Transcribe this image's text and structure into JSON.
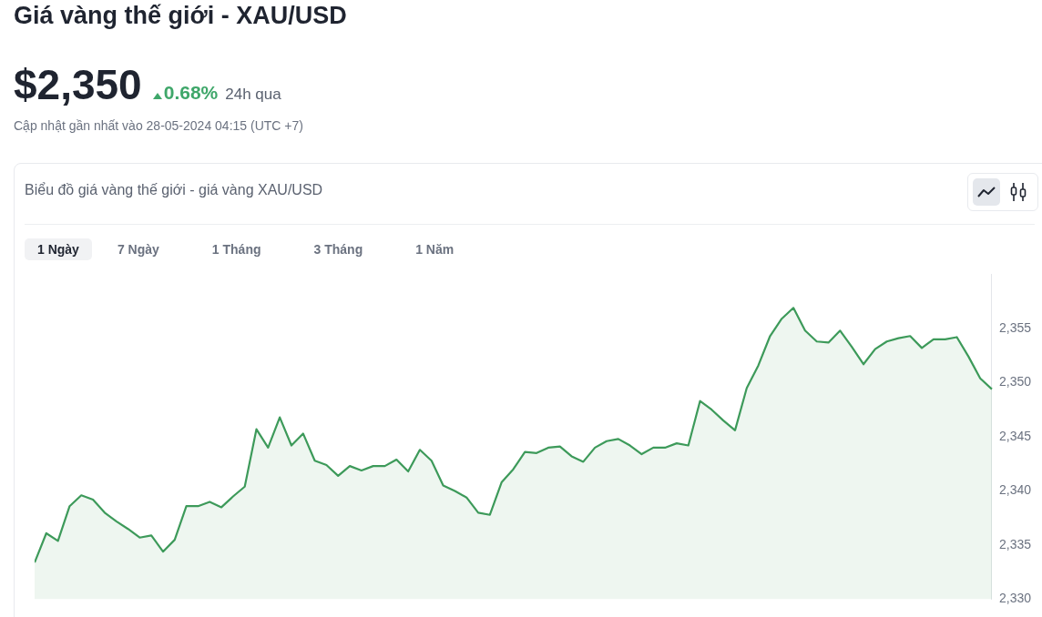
{
  "chart_data": {
    "type": "area",
    "title": "Giá vàng thế giới - XAU/USD",
    "subtitle": "Biểu đồ giá vàng thế giới - giá vàng XAU/USD",
    "annotations": [
      "$2,350",
      "0.68%",
      "24h qua",
      "Cập nhật gần nhất vào 28-05-2024 04:15 (UTC +7)",
      "1 Ngày",
      "7 Ngày",
      "1 Tháng",
      "3 Tháng",
      "1 Năm"
    ],
    "categories": [
      null,
      null,
      null,
      null,
      null,
      null,
      null,
      null,
      null,
      null,
      null,
      null,
      null,
      null,
      null,
      null,
      null,
      null,
      null,
      null,
      null,
      null,
      null,
      null,
      null,
      null,
      null,
      null,
      null,
      null,
      null,
      null,
      null,
      null,
      null,
      null,
      null,
      null,
      null,
      null,
      null,
      null,
      null,
      null,
      null,
      null,
      null,
      null,
      null,
      null,
      null,
      null,
      null,
      null,
      null,
      null,
      null,
      null,
      null,
      null,
      null,
      null,
      null,
      null,
      null,
      null,
      null,
      null,
      null,
      null,
      null,
      null,
      null,
      null,
      null,
      null,
      null,
      null,
      null,
      null,
      null,
      null,
      null
    ],
    "series": [
      {
        "color": "#3d9a5a",
        "values": [
          2333.4,
          2336.1,
          2335.4,
          2338.6,
          2339.6,
          2339.2,
          2338.0,
          2337.2,
          2336.5,
          2335.7,
          2335.9,
          2334.4,
          2335.5,
          2338.6,
          2338.6,
          2339.0,
          2338.5,
          2339.5,
          2340.4,
          2345.7,
          2344.0,
          2346.8,
          2344.2,
          2345.3,
          2342.8,
          2342.4,
          2341.4,
          2342.3,
          2341.9,
          2342.3,
          2342.3,
          2342.9,
          2341.8,
          2343.8,
          2342.8,
          2340.5,
          2340.0,
          2339.4,
          2338.0,
          2337.8,
          2340.8,
          2342.0,
          2343.6,
          2343.5,
          2344.0,
          2344.1,
          2343.2,
          2342.7,
          2344.0,
          2344.6,
          2344.8,
          2344.2,
          2343.4,
          2344.0,
          2344.0,
          2344.4,
          2344.2,
          2348.3,
          2347.5,
          2346.5,
          2345.6,
          2349.5,
          2351.6,
          2354.3,
          2355.9,
          2356.9,
          2354.8,
          2353.8,
          2353.7,
          2354.8,
          2353.3,
          2351.7,
          2353.1,
          2353.8,
          2354.1,
          2354.3,
          2353.2,
          2354.0,
          2354.0,
          2354.2,
          2352.4,
          2350.4,
          2349.4
        ]
      }
    ],
    "ylim": [
      2330,
      2360
    ],
    "yticks": [
      {
        "value": 2330,
        "label": "2,330"
      },
      {
        "value": 2335,
        "label": "2,335"
      },
      {
        "value": 2340,
        "label": "2,340"
      },
      {
        "value": 2345,
        "label": "2,345"
      },
      {
        "value": 2350,
        "label": "2,350"
      },
      {
        "value": 2355,
        "label": "2,355"
      }
    ],
    "grid": false,
    "legend": false
  }
}
